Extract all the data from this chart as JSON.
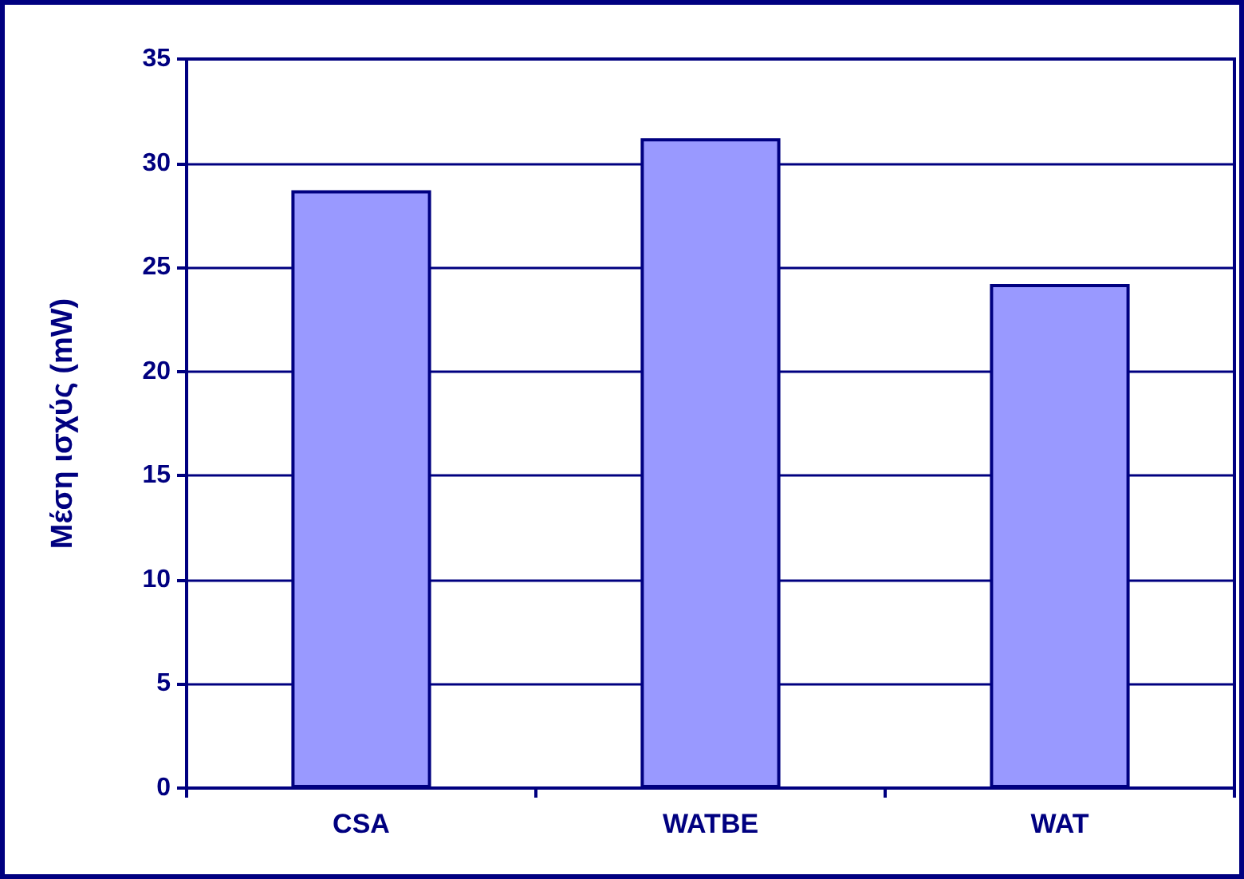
{
  "chart_data": {
    "type": "bar",
    "ylabel": "Μέση ισχύς (mW)",
    "categories": [
      "CSA",
      "WATBE",
      "WAT"
    ],
    "values": [
      28.7,
      31.2,
      24.2
    ],
    "color": "#9999ff",
    "ylim": [
      0,
      35
    ],
    "yticks": [
      0,
      5,
      10,
      15,
      20,
      25,
      30,
      35
    ],
    "grid": "y"
  }
}
